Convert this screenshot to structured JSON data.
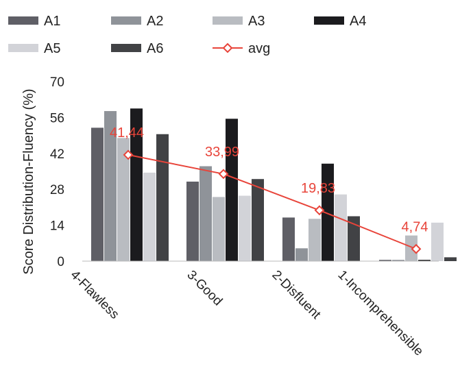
{
  "chart_data": {
    "type": "bar",
    "title": "",
    "xlabel": "",
    "ylabel": "Score Distribution-Fluency (%)",
    "ylim": [
      0,
      70
    ],
    "yticks": [
      0,
      14,
      28,
      42,
      56,
      70
    ],
    "grid": false,
    "legend_position": "top",
    "categories": [
      "4-Flawless",
      "3-Good",
      "2-Disfluent",
      "1-Incomprehensible"
    ],
    "series": [
      {
        "name": "A1",
        "type": "bar",
        "color": "#5f5f66",
        "values": [
          52,
          31,
          17,
          0.5
        ]
      },
      {
        "name": "A2",
        "type": "bar",
        "color": "#8f9399",
        "values": [
          58.5,
          37,
          5,
          0.5
        ]
      },
      {
        "name": "A3",
        "type": "bar",
        "color": "#b9bcc1",
        "values": [
          48,
          25,
          16.5,
          10
        ]
      },
      {
        "name": "A4",
        "type": "bar",
        "color": "#1b1b1e",
        "values": [
          59.5,
          55.5,
          38,
          0.5
        ]
      },
      {
        "name": "A5",
        "type": "bar",
        "color": "#d2d3d8",
        "values": [
          34.5,
          25.5,
          26,
          15
        ]
      },
      {
        "name": "A6",
        "type": "bar",
        "color": "#414245",
        "values": [
          49.5,
          32,
          17.5,
          1.5
        ]
      },
      {
        "name": "avg",
        "type": "line",
        "color": "#e8443a",
        "values": [
          41.44,
          33.99,
          19.83,
          4.74
        ],
        "data_labels": [
          "41,44",
          "33,99",
          "19,83",
          "4,74"
        ]
      }
    ]
  }
}
